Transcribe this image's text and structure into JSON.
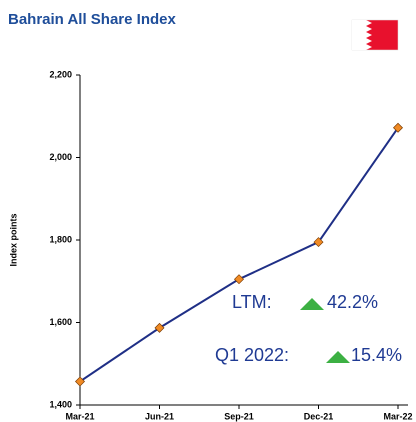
{
  "chart_data": {
    "type": "line",
    "title": "Bahrain All Share Index",
    "ylabel": "Index points",
    "categories": [
      "Mar-21",
      "Jun-21",
      "Sep-21",
      "Dec-21",
      "Mar-22"
    ],
    "series": [
      {
        "name": "Bahrain All Share Index",
        "color": "#1f2f86",
        "marker_color": "#f08a24",
        "values": [
          1457,
          1587,
          1705,
          1795,
          2072
        ]
      }
    ],
    "ylim": [
      1400,
      2200
    ],
    "yticks": [
      {
        "value": 1400,
        "label": "1,400"
      },
      {
        "value": 1600,
        "label": "1,600"
      },
      {
        "value": 1800,
        "label": "1,800"
      },
      {
        "value": 2000,
        "label": "2,000"
      },
      {
        "value": 2200,
        "label": "2,200"
      }
    ],
    "annotations": [
      "LTM:",
      "42.2%",
      "Q1 2022:",
      "15.4%"
    ]
  }
}
